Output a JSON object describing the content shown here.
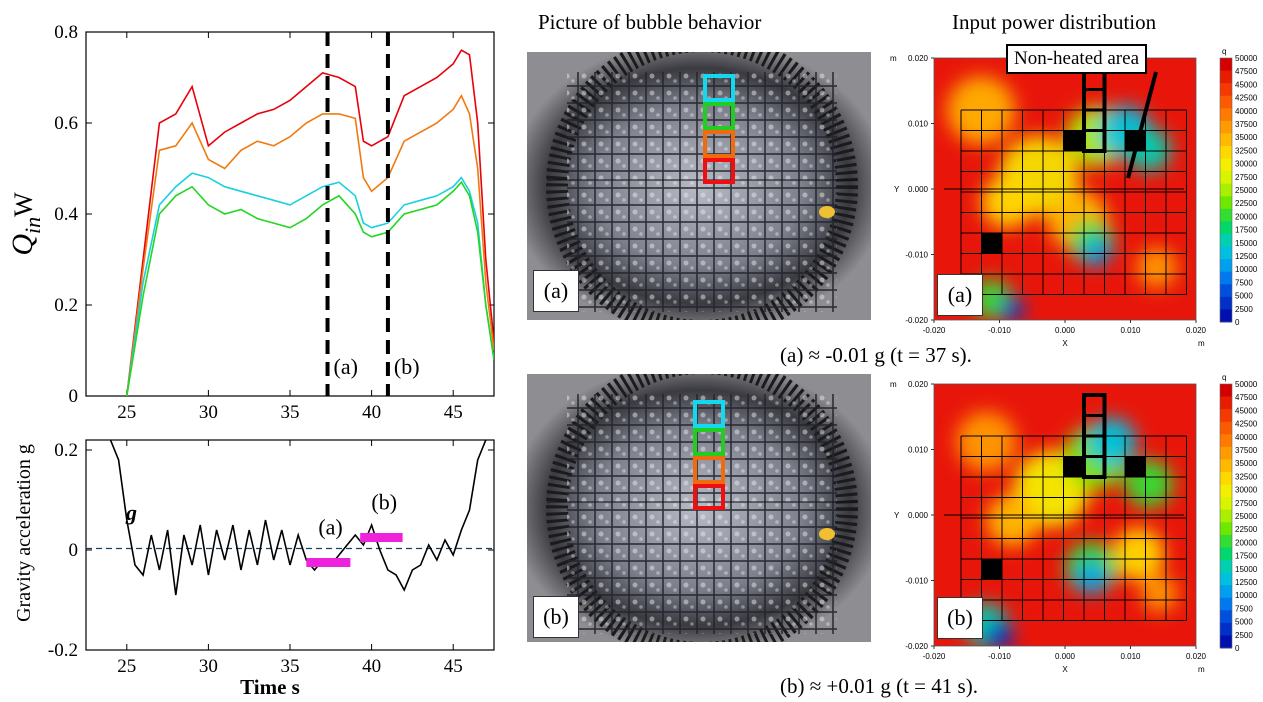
{
  "headers": {
    "bubble": "Picture of bubble behavior",
    "power": "Input power distribution"
  },
  "captions": {
    "a": "(a) ≈ -0.01 g (t = 37 s).",
    "b": "(b) ≈ +0.01 g (t = 41 s)."
  },
  "callout": "Non-heated area",
  "panel_labels": {
    "a": "(a)",
    "b": "(b)"
  },
  "colorbar": {
    "unit": "q",
    "ticks": [
      "50000",
      "47500",
      "45000",
      "42500",
      "40000",
      "37500",
      "35000",
      "32500",
      "30000",
      "27500",
      "25000",
      "22500",
      "20000",
      "17500",
      "15000",
      "12500",
      "10000",
      "7500",
      "5000",
      "2500",
      "0"
    ],
    "colors": [
      "#d40000",
      "#e81d00",
      "#f43a00",
      "#fb5a00",
      "#ff7a00",
      "#ff9a00",
      "#ffba00",
      "#ffd800",
      "#f4ee00",
      "#d8f400",
      "#a8f000",
      "#6fe800",
      "#33de33",
      "#00d86a",
      "#00d0b0",
      "#00c0e0",
      "#00a0f0",
      "#0078f0",
      "#0050e0",
      "#0030c8",
      "#0010b0"
    ]
  },
  "map_axes": {
    "x_ticks": [
      "-0.020",
      "-0.010",
      "0.000",
      "0.010",
      "0.020"
    ],
    "y_ticks": [
      "0.020",
      "0.010",
      "0.000",
      "-0.010",
      "-0.020"
    ],
    "x_label": "X",
    "y_label": "Y",
    "unit": "m"
  },
  "chart_data": [
    {
      "type": "line",
      "xlabel": "",
      "ylabel": "Q_in W",
      "xlim": [
        22.5,
        47.5
      ],
      "ylim": [
        0,
        0.8
      ],
      "x_ticks": [
        25,
        30,
        35,
        40,
        45
      ],
      "y_ticks": [
        0,
        0.2,
        0.4,
        0.6,
        0.8
      ],
      "x_tick_labels": [
        "25",
        "30",
        "35",
        "40",
        "45"
      ],
      "y_tick_labels": [
        "0",
        "0.2",
        "0.4",
        "0.6",
        "0.8"
      ],
      "vlines": [
        {
          "x": 37.3,
          "label": "(a)"
        },
        {
          "x": 41,
          "label": "(b)"
        }
      ],
      "series": [
        {
          "color": "#e8000a",
          "x": [
            25,
            26,
            27,
            28,
            29,
            30,
            31,
            32,
            33,
            34,
            35,
            36,
            37,
            38,
            39,
            39.5,
            40,
            41,
            42,
            43,
            44,
            45,
            45.5,
            46,
            46.5,
            47,
            47.5
          ],
          "y": [
            0,
            0.3,
            0.6,
            0.62,
            0.68,
            0.55,
            0.58,
            0.6,
            0.62,
            0.63,
            0.65,
            0.68,
            0.71,
            0.7,
            0.68,
            0.56,
            0.55,
            0.57,
            0.66,
            0.68,
            0.7,
            0.73,
            0.76,
            0.75,
            0.6,
            0.3,
            0.12
          ]
        },
        {
          "color": "#f07a10",
          "x": [
            25,
            26,
            27,
            28,
            29,
            30,
            31,
            32,
            33,
            34,
            35,
            36,
            37,
            38,
            39,
            39.5,
            40,
            41,
            42,
            43,
            44,
            45,
            45.5,
            46,
            46.5,
            47,
            47.5
          ],
          "y": [
            0,
            0.28,
            0.54,
            0.55,
            0.6,
            0.52,
            0.5,
            0.54,
            0.56,
            0.55,
            0.57,
            0.6,
            0.62,
            0.62,
            0.61,
            0.48,
            0.45,
            0.48,
            0.56,
            0.58,
            0.6,
            0.63,
            0.66,
            0.62,
            0.5,
            0.25,
            0.1
          ]
        },
        {
          "color": "#1ad0e0",
          "x": [
            25,
            26,
            27,
            28,
            29,
            30,
            31,
            32,
            33,
            34,
            35,
            36,
            37,
            38,
            39,
            39.5,
            40,
            41,
            42,
            43,
            44,
            45,
            45.5,
            46,
            46.5,
            47,
            47.5
          ],
          "y": [
            0,
            0.25,
            0.42,
            0.46,
            0.49,
            0.48,
            0.46,
            0.45,
            0.44,
            0.43,
            0.42,
            0.44,
            0.46,
            0.47,
            0.44,
            0.38,
            0.37,
            0.38,
            0.42,
            0.43,
            0.44,
            0.46,
            0.48,
            0.45,
            0.38,
            0.2,
            0.08
          ]
        },
        {
          "color": "#22d622",
          "x": [
            25,
            26,
            27,
            28,
            29,
            30,
            31,
            32,
            33,
            34,
            35,
            36,
            37,
            38,
            39,
            39.5,
            40,
            41,
            42,
            43,
            44,
            45,
            45.5,
            46,
            46.5,
            47,
            47.5
          ],
          "y": [
            0,
            0.22,
            0.4,
            0.44,
            0.46,
            0.42,
            0.4,
            0.41,
            0.39,
            0.38,
            0.37,
            0.39,
            0.42,
            0.44,
            0.4,
            0.36,
            0.35,
            0.36,
            0.4,
            0.41,
            0.42,
            0.45,
            0.47,
            0.44,
            0.36,
            0.2,
            0.08
          ]
        }
      ]
    },
    {
      "type": "line",
      "xlabel": "Time s",
      "ylabel": "Gravity acceleration g",
      "xlim": [
        22.5,
        47.5
      ],
      "ylim": [
        -0.2,
        0.22
      ],
      "x_ticks": [
        25,
        30,
        35,
        40,
        45
      ],
      "y_ticks": [
        -0.2,
        0,
        0.2
      ],
      "x_tick_labels": [
        "25",
        "30",
        "35",
        "40",
        "45"
      ],
      "y_tick_labels": [
        "-0.2",
        "0",
        "0.2"
      ],
      "series_label": "g",
      "series": [
        {
          "color": "#000000",
          "x": [
            24,
            24.5,
            25,
            25.5,
            26,
            26.5,
            27,
            27.5,
            28,
            28.5,
            29,
            29.5,
            30,
            30.5,
            31,
            31.5,
            32,
            32.5,
            33,
            33.5,
            34,
            34.5,
            35,
            35.5,
            36,
            36.5,
            37,
            37.5,
            38,
            38.5,
            39,
            39.5,
            40,
            40.5,
            41,
            41.5,
            42,
            42.5,
            43,
            43.5,
            44,
            44.5,
            45,
            45.5,
            46,
            46.5,
            47
          ],
          "y": [
            0.22,
            0.18,
            0.06,
            -0.03,
            -0.05,
            0.03,
            -0.04,
            0.04,
            -0.09,
            0.03,
            -0.03,
            0.05,
            -0.05,
            0.04,
            -0.02,
            0.05,
            -0.04,
            0.04,
            -0.03,
            0.06,
            -0.02,
            0.04,
            -0.03,
            0.03,
            -0.02,
            -0.04,
            -0.02,
            -0.03,
            -0.01,
            0.01,
            0.03,
            0.01,
            0.05,
            0.0,
            -0.04,
            -0.05,
            -0.08,
            -0.04,
            -0.03,
            0.01,
            -0.02,
            0.02,
            -0.01,
            0.04,
            0.08,
            0.18,
            0.22
          ]
        }
      ],
      "hlines": [
        {
          "y": 0.003,
          "style": "dashed"
        }
      ],
      "segments": [
        {
          "label": "(a)",
          "x0": 36,
          "x1": 38.7,
          "y": -0.025,
          "color": "#ee22dd"
        },
        {
          "label": "(b)",
          "x0": 39.3,
          "x1": 41.9,
          "y": 0.025,
          "color": "#ee22dd"
        }
      ]
    }
  ]
}
